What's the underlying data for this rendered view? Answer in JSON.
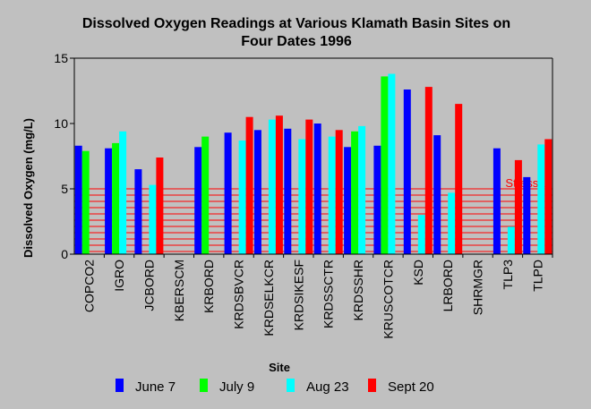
{
  "chart_data": {
    "type": "bar",
    "title_lines": [
      "Dissolved Oxygen Readings at Various Klamath Basin Sites on",
      "Four Dates 1996"
    ],
    "xlabel": "Site",
    "ylabel": "Dissolved Oxygen (mg/L)",
    "ylim": [
      0,
      15
    ],
    "yticks": [
      0,
      5,
      10,
      15
    ],
    "grid": false,
    "legend_position": "bottom",
    "categories": [
      "COPCO2",
      "IGRO",
      "JCBORD",
      "KBERSCM",
      "KRBORD",
      "KRDSBVCR",
      "KRDSELKCR",
      "KRDSIKESF",
      "KRDSSCTR",
      "KRDSSHR",
      "KRUSCOTCR",
      "KSD",
      "LRBORD",
      "SHRMGR",
      "TLP3",
      "TLPD"
    ],
    "series": [
      {
        "name": "June 7",
        "color": "#0000ff",
        "values": [
          8.3,
          8.1,
          6.5,
          null,
          8.2,
          9.3,
          9.5,
          9.6,
          10.0,
          8.2,
          8.3,
          12.6,
          9.1,
          null,
          8.1,
          5.9
        ]
      },
      {
        "name": "July 9",
        "color": "#00ff00",
        "values": [
          7.9,
          8.5,
          null,
          null,
          9.0,
          null,
          null,
          null,
          null,
          9.4,
          13.6,
          null,
          null,
          null,
          null,
          null
        ]
      },
      {
        "name": "Aug 23",
        "color": "#00ffff",
        "values": [
          null,
          9.4,
          5.3,
          null,
          null,
          8.7,
          10.3,
          8.8,
          9.0,
          9.8,
          13.8,
          3.0,
          4.7,
          null,
          2.1,
          8.4
        ]
      },
      {
        "name": "Sept 20",
        "color": "#ff0000",
        "values": [
          null,
          null,
          7.4,
          null,
          null,
          10.5,
          10.6,
          10.3,
          9.5,
          null,
          null,
          12.8,
          11.5,
          null,
          7.2,
          8.8
        ]
      }
    ],
    "annotation": {
      "text": "Stressful",
      "color": "#ff0000",
      "y_range": [
        0,
        5
      ]
    }
  }
}
